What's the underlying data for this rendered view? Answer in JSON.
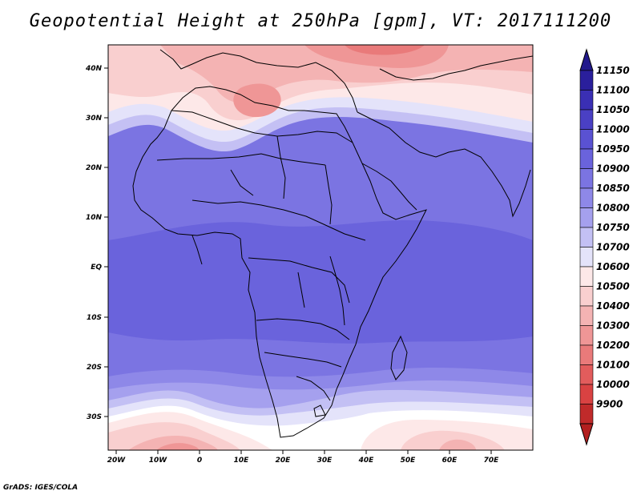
{
  "title": "Geopotential Height at 250hPa [gpm], VT: 2017111200",
  "credit": "GrADS: IGES/COLA",
  "axes": {
    "lat_labels": [
      "40N",
      "30N",
      "20N",
      "10N",
      "EQ",
      "10S",
      "20S",
      "30S"
    ],
    "lon_labels": [
      "20W",
      "10W",
      "0",
      "10E",
      "20E",
      "30E",
      "40E",
      "50E",
      "60E",
      "70E"
    ]
  },
  "colorbar": {
    "levels": [
      "11150",
      "11100",
      "11050",
      "11000",
      "10950",
      "10900",
      "10850",
      "10800",
      "10750",
      "10700",
      "10600",
      "10500",
      "10400",
      "10300",
      "10200",
      "10100",
      "10000",
      "9900"
    ],
    "colors": [
      "#2a1f9c",
      "#3a2fb4",
      "#4a40c4",
      "#5a52d2",
      "#6a63dc",
      "#7b74e2",
      "#8e88e8",
      "#a5a0ee",
      "#c3c0f4",
      "#e4e3fa",
      "#fde8e8",
      "#f9cfcf",
      "#f4b3b3",
      "#ef9696",
      "#e97a7a",
      "#e25c5c",
      "#d94242",
      "#c02a2a"
    ],
    "min_color": "#b31f1f",
    "max_color": "#22198c"
  }
}
